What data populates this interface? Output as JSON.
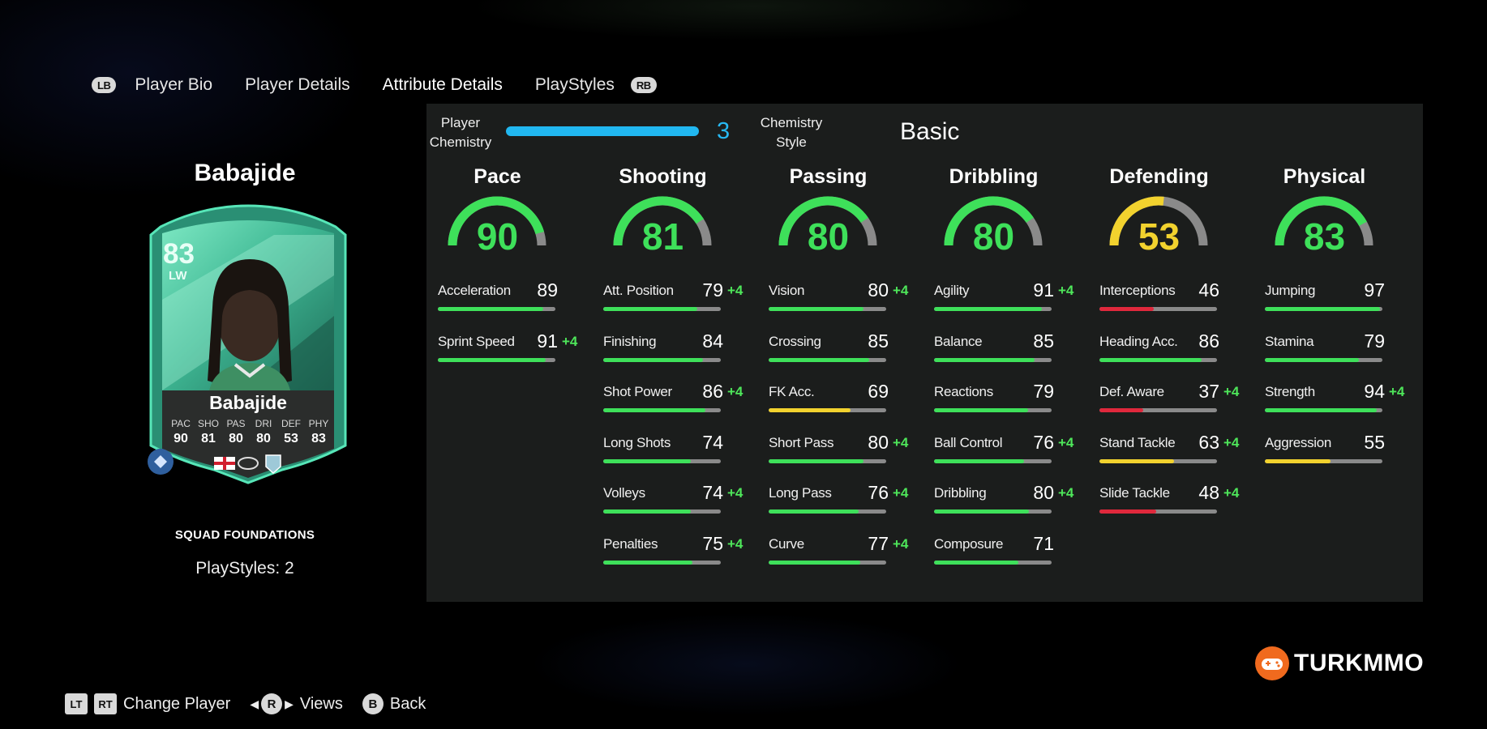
{
  "tabs": {
    "left_button": "LB",
    "right_button": "RB",
    "items": [
      {
        "label": "Player Bio",
        "active": false
      },
      {
        "label": "Player Details",
        "active": false
      },
      {
        "label": "Attribute Details",
        "active": true
      },
      {
        "label": "PlayStyles",
        "active": false
      }
    ]
  },
  "player": {
    "name": "Babajide",
    "card": {
      "rating": "83",
      "position": "LW",
      "name": "Babajide",
      "stat_labels": [
        "PAC",
        "SHO",
        "PAS",
        "DRI",
        "DEF",
        "PHY"
      ],
      "stat_values": [
        "90",
        "81",
        "80",
        "80",
        "53",
        "83"
      ]
    },
    "squad_label": "SQUAD FOUNDATIONS",
    "playstyles_label": "PlayStyles: 2"
  },
  "chemistry": {
    "player_label_1": "Player",
    "player_label_2": "Chemistry",
    "value": "3",
    "style_label_1": "Chemistry",
    "style_label_2": "Style",
    "style_value": "Basic"
  },
  "colors": {
    "green": "#3ee05a",
    "yellow": "#f2d22e",
    "red": "#e0283c",
    "track": "#8a8a8a",
    "chem_blue": "#21b7f0"
  },
  "categories": [
    {
      "name": "Pace",
      "value": 90,
      "attributes": [
        {
          "name": "Acceleration",
          "value": 89,
          "bonus": ""
        },
        {
          "name": "Sprint Speed",
          "value": 91,
          "bonus": "+4"
        }
      ]
    },
    {
      "name": "Shooting",
      "value": 81,
      "attributes": [
        {
          "name": "Att. Position",
          "value": 79,
          "bonus": "+4"
        },
        {
          "name": "Finishing",
          "value": 84,
          "bonus": ""
        },
        {
          "name": "Shot Power",
          "value": 86,
          "bonus": "+4"
        },
        {
          "name": "Long Shots",
          "value": 74,
          "bonus": ""
        },
        {
          "name": "Volleys",
          "value": 74,
          "bonus": "+4"
        },
        {
          "name": "Penalties",
          "value": 75,
          "bonus": "+4"
        }
      ]
    },
    {
      "name": "Passing",
      "value": 80,
      "attributes": [
        {
          "name": "Vision",
          "value": 80,
          "bonus": "+4"
        },
        {
          "name": "Crossing",
          "value": 85,
          "bonus": ""
        },
        {
          "name": "FK Acc.",
          "value": 69,
          "bonus": ""
        },
        {
          "name": "Short Pass",
          "value": 80,
          "bonus": "+4"
        },
        {
          "name": "Long Pass",
          "value": 76,
          "bonus": "+4"
        },
        {
          "name": "Curve",
          "value": 77,
          "bonus": "+4"
        }
      ]
    },
    {
      "name": "Dribbling",
      "value": 80,
      "attributes": [
        {
          "name": "Agility",
          "value": 91,
          "bonus": "+4"
        },
        {
          "name": "Balance",
          "value": 85,
          "bonus": ""
        },
        {
          "name": "Reactions",
          "value": 79,
          "bonus": ""
        },
        {
          "name": "Ball Control",
          "value": 76,
          "bonus": "+4"
        },
        {
          "name": "Dribbling",
          "value": 80,
          "bonus": "+4"
        },
        {
          "name": "Composure",
          "value": 71,
          "bonus": ""
        }
      ]
    },
    {
      "name": "Defending",
      "value": 53,
      "attributes": [
        {
          "name": "Interceptions",
          "value": 46,
          "bonus": ""
        },
        {
          "name": "Heading Acc.",
          "value": 86,
          "bonus": ""
        },
        {
          "name": "Def. Aware",
          "value": 37,
          "bonus": "+4"
        },
        {
          "name": "Stand Tackle",
          "value": 63,
          "bonus": "+4"
        },
        {
          "name": "Slide Tackle",
          "value": 48,
          "bonus": "+4"
        }
      ]
    },
    {
      "name": "Physical",
      "value": 83,
      "attributes": [
        {
          "name": "Jumping",
          "value": 97,
          "bonus": ""
        },
        {
          "name": "Stamina",
          "value": 79,
          "bonus": ""
        },
        {
          "name": "Strength",
          "value": 94,
          "bonus": "+4"
        },
        {
          "name": "Aggression",
          "value": 55,
          "bonus": ""
        }
      ]
    }
  ],
  "bottom_bar": {
    "lt": "LT",
    "rt": "RT",
    "change_player": "Change Player",
    "r": "R",
    "views": "Views",
    "b": "B",
    "back": "Back"
  },
  "watermark": "TURKMMO"
}
